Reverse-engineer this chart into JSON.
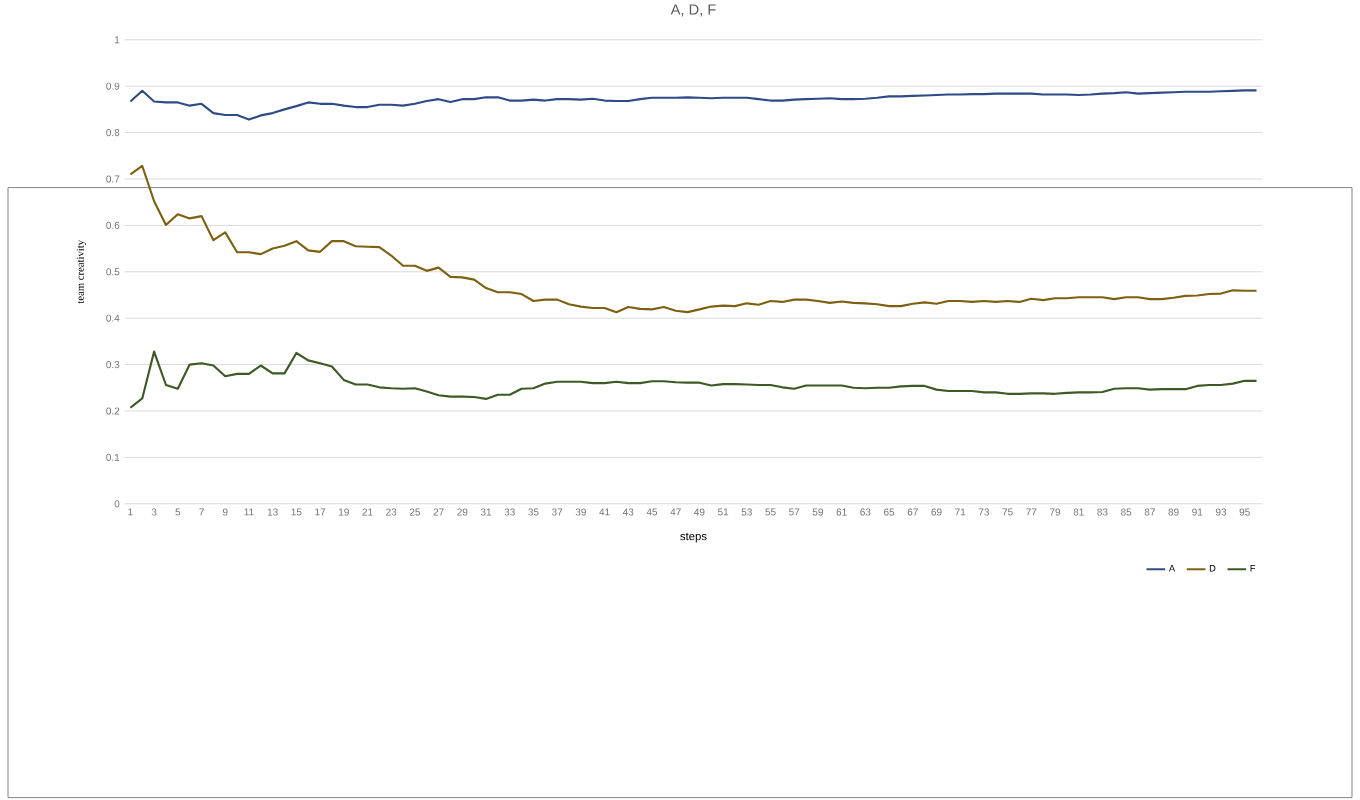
{
  "chart_data": {
    "type": "line",
    "title": "A, D, F",
    "xlabel": "steps",
    "ylabel": "team creativity",
    "categories": [
      "1",
      null,
      "3",
      null,
      "5",
      null,
      "7",
      null,
      "9",
      null,
      "11",
      null,
      "13",
      null,
      "15",
      null,
      "17",
      null,
      "19",
      null,
      "21",
      null,
      "23",
      null,
      "25",
      null,
      "27",
      null,
      "29",
      null,
      "31",
      null,
      "33",
      null,
      "35",
      null,
      "37",
      null,
      "39",
      null,
      "41",
      null,
      "43",
      null,
      "45",
      null,
      "47",
      null,
      "49",
      null,
      "51",
      null,
      "53",
      null,
      "55",
      null,
      "57",
      null,
      "59",
      null,
      "61",
      null,
      "63",
      null,
      "65",
      null,
      "67",
      null,
      "69",
      null,
      "71",
      null,
      "73",
      null,
      "75",
      null,
      "77",
      null,
      "79",
      null,
      "81",
      null,
      "83",
      null,
      "85",
      null,
      "87",
      null,
      "89",
      null,
      "91",
      null,
      "93",
      null,
      "95",
      null
    ],
    "series": [
      {
        "name": "A",
        "color": "#2e4a87",
        "values": [
          0.867,
          0.89,
          0.867,
          0.865,
          0.865,
          0.858,
          0.862,
          0.842,
          0.838,
          0.838,
          0.828,
          0.837,
          0.842,
          0.85,
          0.857,
          0.865,
          0.862,
          0.862,
          0.858,
          0.855,
          0.855,
          0.86,
          0.86,
          0.858,
          0.862,
          0.868,
          0.872,
          0.866,
          0.872,
          0.872,
          0.876,
          0.876,
          0.869,
          0.869,
          0.871,
          0.869,
          0.872,
          0.872,
          0.871,
          0.873,
          0.869,
          0.868,
          0.868,
          0.872,
          0.875,
          0.875,
          0.875,
          0.876,
          0.875,
          0.874,
          0.875,
          0.875,
          0.875,
          0.872,
          0.869,
          0.869,
          0.871,
          0.872,
          0.873,
          0.874,
          0.872,
          0.872,
          0.873,
          0.875,
          0.878,
          0.878,
          0.879,
          0.88,
          0.881,
          0.882,
          0.882,
          0.883,
          0.883,
          0.884,
          0.884,
          0.884,
          0.884,
          0.882,
          0.882,
          0.882,
          0.881,
          0.882,
          0.884,
          0.885,
          0.887,
          0.884,
          0.885,
          0.886,
          0.887,
          0.888,
          0.888,
          0.888,
          0.889,
          0.89,
          0.891,
          0.891
        ]
      },
      {
        "name": "D",
        "color": "#7f5f10",
        "values": [
          0.71,
          0.728,
          0.652,
          0.601,
          0.624,
          0.615,
          0.62,
          0.568,
          0.585,
          0.542,
          0.542,
          0.538,
          0.55,
          0.556,
          0.566,
          0.546,
          0.543,
          0.566,
          0.566,
          0.555,
          0.554,
          0.553,
          0.535,
          0.513,
          0.513,
          0.502,
          0.509,
          0.489,
          0.488,
          0.483,
          0.465,
          0.456,
          0.456,
          0.452,
          0.437,
          0.44,
          0.44,
          0.43,
          0.425,
          0.422,
          0.422,
          0.413,
          0.424,
          0.42,
          0.419,
          0.424,
          0.416,
          0.413,
          0.419,
          0.425,
          0.427,
          0.426,
          0.432,
          0.429,
          0.437,
          0.435,
          0.44,
          0.44,
          0.437,
          0.433,
          0.436,
          0.433,
          0.432,
          0.43,
          0.426,
          0.426,
          0.431,
          0.434,
          0.431,
          0.437,
          0.437,
          0.435,
          0.437,
          0.435,
          0.437,
          0.435,
          0.442,
          0.439,
          0.443,
          0.443,
          0.445,
          0.445,
          0.445,
          0.441,
          0.445,
          0.445,
          0.441,
          0.441,
          0.444,
          0.448,
          0.449,
          0.452,
          0.453,
          0.46,
          0.459,
          0.459
        ]
      },
      {
        "name": "F",
        "color": "#3d5a25",
        "values": [
          0.207,
          0.227,
          0.328,
          0.256,
          0.248,
          0.3,
          0.303,
          0.298,
          0.275,
          0.28,
          0.28,
          0.298,
          0.281,
          0.281,
          0.325,
          0.309,
          0.303,
          0.296,
          0.267,
          0.257,
          0.257,
          0.251,
          0.249,
          0.248,
          0.249,
          0.242,
          0.234,
          0.231,
          0.231,
          0.23,
          0.226,
          0.235,
          0.235,
          0.248,
          0.249,
          0.259,
          0.263,
          0.263,
          0.263,
          0.26,
          0.26,
          0.263,
          0.26,
          0.26,
          0.264,
          0.264,
          0.262,
          0.261,
          0.261,
          0.255,
          0.258,
          0.258,
          0.257,
          0.256,
          0.256,
          0.251,
          0.248,
          0.255,
          0.255,
          0.255,
          0.255,
          0.25,
          0.249,
          0.25,
          0.25,
          0.253,
          0.254,
          0.254,
          0.246,
          0.243,
          0.243,
          0.243,
          0.24,
          0.24,
          0.237,
          0.237,
          0.238,
          0.238,
          0.237,
          0.239,
          0.24,
          0.24,
          0.241,
          0.248,
          0.249,
          0.249,
          0.246,
          0.247,
          0.247,
          0.247,
          0.254,
          0.256,
          0.256,
          0.259,
          0.265,
          0.265
        ]
      }
    ],
    "ylim": [
      0,
      1
    ],
    "yticks": [
      0,
      0.1,
      0.2,
      0.3,
      0.4,
      0.5,
      0.6,
      0.7,
      0.8,
      0.9,
      1
    ],
    "grid": "y",
    "legend": "bottom right",
    "marker": "none",
    "line_style": "solid"
  }
}
